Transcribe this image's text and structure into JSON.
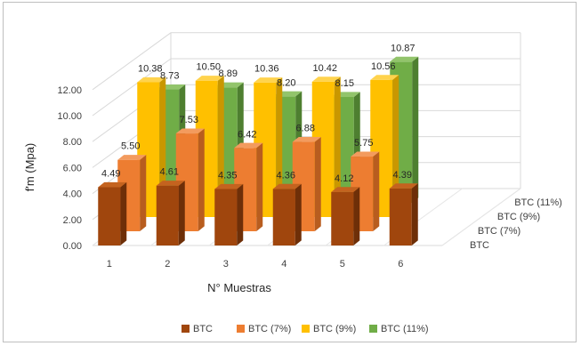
{
  "chart_data": {
    "type": "bar",
    "three_d": true,
    "categories": [
      "1",
      "2",
      "3",
      "4",
      "5",
      "6"
    ],
    "series": [
      {
        "name": "BTC",
        "values": [
          4.49,
          4.61,
          4.35,
          4.36,
          4.12,
          4.39
        ]
      },
      {
        "name": "BTC (7%)",
        "values": [
          5.5,
          7.53,
          6.42,
          6.88,
          5.75,
          null
        ]
      },
      {
        "name": "BTC (9%)",
        "values": [
          10.38,
          10.5,
          10.36,
          10.42,
          10.56,
          null
        ]
      },
      {
        "name": "BTC (11%)",
        "values": [
          8.73,
          8.89,
          8.2,
          8.15,
          10.87,
          null
        ]
      }
    ],
    "data_labels": [
      [
        "4.49",
        "4.61",
        "4.35",
        "4.36",
        "4.12",
        "4.39"
      ],
      [
        "5.50",
        "7.53",
        "6.42",
        "6.88",
        "5.75",
        ""
      ],
      [
        "10.38",
        "10.50",
        "10.36",
        "10.42",
        "10.56",
        ""
      ],
      [
        "8.73",
        "8.89",
        "8.20",
        "8.15",
        "10.87",
        ""
      ]
    ],
    "xlabel": "N° Muestras",
    "ylabel": "f'm (Mpa)",
    "ylim": [
      0,
      12
    ],
    "yticks": [
      "0.00",
      "2.00",
      "4.00",
      "6.00",
      "8.00",
      "10.00",
      "12.00"
    ],
    "depth_labels": [
      "BTC",
      "BTC (7%)",
      "BTC (9%)",
      "BTC (11%)"
    ],
    "legend_position": "bottom",
    "grid": true,
    "colors": {
      "BTC": {
        "front": "#a0460d",
        "side": "#6e2f08",
        "top": "#c4631f"
      },
      "BTC (7%)": {
        "front": "#ed7d31",
        "side": "#b85d1f",
        "top": "#f39b5e"
      },
      "BTC (9%)": {
        "front": "#ffc000",
        "side": "#c99700",
        "top": "#ffd34d"
      },
      "BTC (11%)": {
        "front": "#70ad47",
        "side": "#4e7f30",
        "top": "#92c46b"
      }
    }
  }
}
